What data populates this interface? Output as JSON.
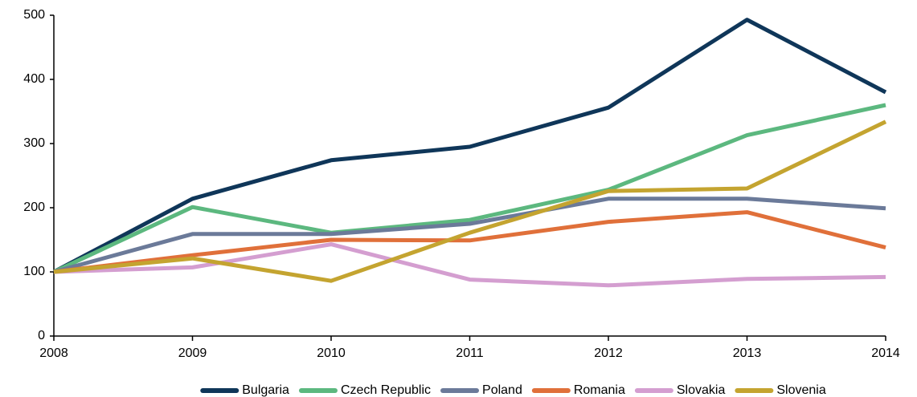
{
  "chart_data": {
    "type": "line",
    "x": [
      2008,
      2009,
      2010,
      2011,
      2012,
      2013,
      2014
    ],
    "xlim": [
      2008,
      2014
    ],
    "xticks": [
      2008,
      2009,
      2010,
      2011,
      2012,
      2013,
      2014
    ],
    "ylim": [
      0,
      500
    ],
    "yticks": [
      0,
      100,
      200,
      300,
      400,
      500
    ],
    "grid": false,
    "legend": "bottom",
    "series": [
      {
        "name": "Bulgaria",
        "color": "#0f3659",
        "values": [
          100,
          214,
          274,
          295,
          356,
          493,
          380
        ]
      },
      {
        "name": "Czech Republic",
        "color": "#5cb87f",
        "values": [
          100,
          201,
          161,
          181,
          228,
          313,
          360
        ]
      },
      {
        "name": "Poland",
        "color": "#6b7a99",
        "values": [
          100,
          159,
          159,
          175,
          214,
          214,
          199
        ]
      },
      {
        "name": "Romania",
        "color": "#e0703a",
        "values": [
          100,
          126,
          150,
          149,
          178,
          193,
          138
        ]
      },
      {
        "name": "Slovakia",
        "color": "#d49ed0",
        "values": [
          100,
          107,
          143,
          88,
          79,
          89,
          92
        ]
      },
      {
        "name": "Slovenia",
        "color": "#c4a430",
        "values": [
          100,
          121,
          86,
          161,
          226,
          230,
          334
        ]
      }
    ]
  }
}
